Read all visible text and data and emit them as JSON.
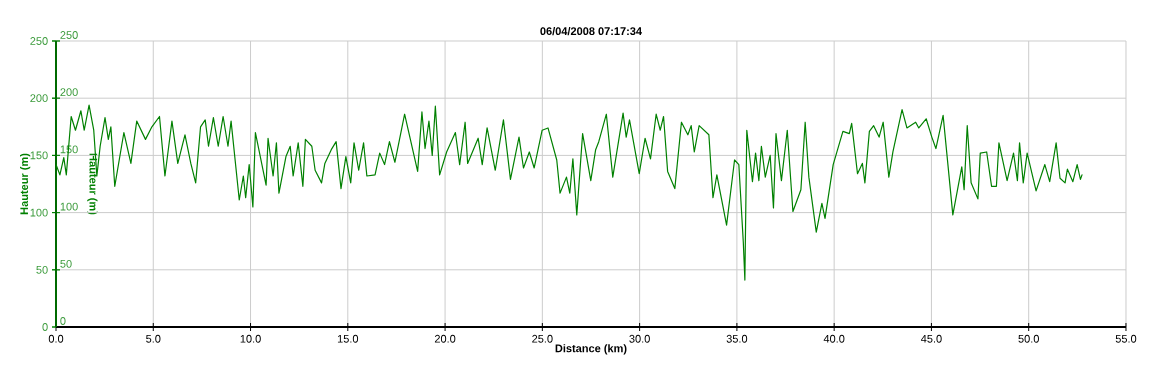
{
  "chart_data": {
    "type": "line",
    "title": "06/04/2008 07:17:34",
    "xlabel": "Distance (km)",
    "ylabel": "Hauteur (m)",
    "y2label": "Hauteur (m)",
    "color": "#008000",
    "grid": true,
    "x": [
      0,
      0.2,
      0.4,
      0.53,
      0.78,
      1.0,
      1.28,
      1.45,
      1.7,
      1.94,
      2.1,
      2.27,
      2.52,
      2.69,
      2.82,
      3.02,
      3.49,
      3.85,
      4.15,
      4.6,
      4.93,
      5.32,
      5.6,
      5.96,
      6.26,
      6.63,
      6.93,
      7.18,
      7.43,
      7.67,
      7.84,
      8.09,
      8.34,
      8.59,
      8.84,
      9.0,
      9.42,
      9.63,
      9.75,
      9.93,
      10.12,
      10.25,
      10.8,
      10.9,
      11.16,
      11.33,
      11.46,
      11.82,
      12.04,
      12.19,
      12.45,
      12.69,
      12.82,
      13.15,
      13.32,
      13.65,
      13.82,
      14.15,
      14.4,
      14.65,
      14.9,
      15.15,
      15.32,
      15.56,
      15.81,
      15.98,
      16.4,
      16.64,
      16.89,
      17.14,
      17.42,
      17.92,
      18.59,
      18.81,
      18.97,
      19.17,
      19.34,
      19.5,
      19.72,
      20.08,
      20.53,
      20.75,
      21.03,
      21.16,
      21.7,
      21.91,
      22.16,
      22.58,
      23.0,
      23.36,
      23.8,
      24.03,
      24.33,
      24.58,
      24.99,
      25.29,
      25.74,
      25.91,
      26.24,
      26.41,
      26.57,
      26.77,
      27.07,
      27.49,
      27.74,
      27.9,
      28.29,
      28.62,
      29.15,
      29.31,
      29.48,
      29.98,
      30.28,
      30.56,
      30.85,
      31.06,
      31.23,
      31.44,
      31.81,
      32.15,
      32.48,
      32.65,
      32.81,
      33.06,
      33.56,
      33.77,
      33.97,
      34.47,
      34.88,
      35.1,
      35.33,
      35.41,
      35.51,
      35.8,
      35.96,
      36.13,
      36.26,
      36.46,
      36.71,
      36.88,
      37.01,
      37.29,
      37.59,
      37.88,
      38.29,
      38.51,
      38.7,
      39.08,
      39.37,
      39.53,
      39.95,
      40.45,
      40.78,
      40.9,
      41.2,
      41.45,
      41.58,
      41.81,
      42.03,
      42.31,
      42.52,
      42.81,
      43.02,
      43.49,
      43.74,
      44.19,
      44.35,
      44.73,
      45.02,
      45.23,
      45.6,
      46.1,
      46.56,
      46.68,
      46.84,
      47.04,
      47.39,
      47.51,
      47.84,
      48.09,
      48.34,
      48.47,
      48.89,
      49.22,
      49.42,
      49.53,
      49.72,
      49.92,
      50.38,
      50.83,
      51.08,
      51.41,
      51.61,
      51.87,
      51.99,
      52.27,
      52.49,
      52.66,
      52.74
    ],
    "values": [
      142,
      133,
      148,
      133,
      184,
      172,
      189,
      172,
      194,
      172,
      132,
      158,
      183,
      164,
      175,
      123,
      170,
      143,
      180,
      164,
      175,
      184,
      132,
      180,
      143,
      168,
      143,
      126,
      175,
      181,
      158,
      183,
      158,
      184,
      158,
      180,
      111,
      132,
      113,
      142,
      105,
      170,
      124,
      165,
      132,
      161,
      117,
      149,
      158,
      132,
      161,
      123,
      164,
      158,
      137,
      126,
      143,
      155,
      162,
      121,
      149,
      126,
      161,
      137,
      161,
      132,
      133,
      152,
      142,
      162,
      144,
      186,
      136,
      188,
      156,
      180,
      150,
      193,
      133,
      153,
      170,
      142,
      179,
      143,
      165,
      142,
      174,
      137,
      181,
      129,
      166,
      139,
      153,
      139,
      172,
      174,
      146,
      117,
      131,
      117,
      147,
      98,
      169,
      128,
      155,
      162,
      186,
      131,
      187,
      166,
      181,
      134,
      165,
      147,
      186,
      172,
      184,
      136,
      121,
      179,
      168,
      176,
      153,
      176,
      168,
      113,
      133,
      89,
      146,
      142,
      74,
      41,
      172,
      127,
      152,
      128,
      158,
      131,
      150,
      104,
      169,
      128,
      172,
      101,
      120,
      179,
      131,
      83,
      108,
      95,
      142,
      171,
      169,
      178,
      134,
      143,
      126,
      171,
      176,
      166,
      179,
      131,
      153,
      190,
      174,
      179,
      174,
      182,
      166,
      156,
      185,
      98,
      140,
      120,
      176,
      126,
      112,
      152,
      153,
      123,
      123,
      161,
      128,
      152,
      128,
      161,
      126,
      152,
      119,
      142,
      127,
      161,
      130,
      126,
      138,
      127,
      142,
      129,
      133
    ],
    "xlim": [
      0,
      55
    ],
    "xticks": [
      {
        "value": 0,
        "label": "0.0"
      },
      {
        "value": 5,
        "label": "5.0"
      },
      {
        "value": 10,
        "label": "10.0"
      },
      {
        "value": 15,
        "label": "15.0"
      },
      {
        "value": 20,
        "label": "20.0"
      },
      {
        "value": 25,
        "label": "25.0"
      },
      {
        "value": 30,
        "label": "30.0"
      },
      {
        "value": 35,
        "label": "35.0"
      },
      {
        "value": 40,
        "label": "40.0"
      },
      {
        "value": 45,
        "label": "45.0"
      },
      {
        "value": 50,
        "label": "50.0"
      },
      {
        "value": 55,
        "label": "55.0"
      }
    ],
    "ylim": [
      0,
      250
    ],
    "yticks": [
      0,
      50,
      100,
      150,
      200,
      250
    ],
    "y2lim": [
      0,
      250
    ],
    "y2ticks": [
      0,
      50,
      100,
      150,
      200,
      250
    ]
  }
}
